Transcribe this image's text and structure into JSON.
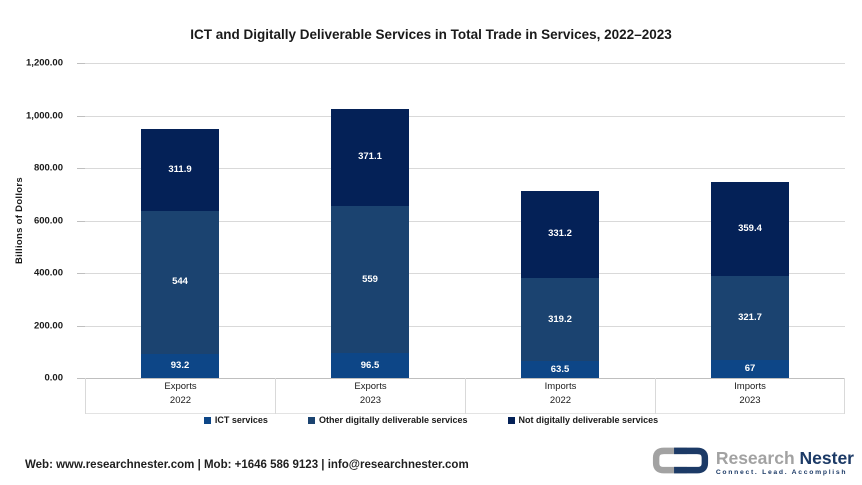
{
  "title": "ICT and Digitally Deliverable Services in Total Trade in Services, 2022–2023",
  "chart_data": {
    "type": "bar",
    "stacked": true,
    "title": "ICT and Digitally Deliverable Services in Total Trade in Services, 2022–2023",
    "xlabel": "",
    "ylabel": "Billions of Dollors",
    "ylim": [
      0,
      1200
    ],
    "grid": true,
    "legend_position": "bottom",
    "ytick_values": [
      0,
      200,
      400,
      600,
      800,
      1000,
      1200
    ],
    "ytick_labels": [
      "0.00",
      "200.00",
      "400.00",
      "600.00",
      "800.00",
      "1,000.00",
      "1,200.00"
    ],
    "categories": [
      {
        "label": "Exports",
        "year": "2022"
      },
      {
        "label": "Exports",
        "year": "2023"
      },
      {
        "label": "Imports",
        "year": "2022"
      },
      {
        "label": "Imports",
        "year": "2023"
      }
    ],
    "series": [
      {
        "name": "ICT services",
        "color": "#0d4687",
        "values": [
          93.2,
          96.5,
          63.5,
          67
        ]
      },
      {
        "name": "Other digitally deliverable services",
        "color": "#1b4370",
        "values": [
          544,
          559,
          319.2,
          321.7
        ]
      },
      {
        "name": "Not digitally deliverable services",
        "color": "#042157",
        "values": [
          311.9,
          371.1,
          331.2,
          359.4
        ]
      }
    ]
  },
  "footer": {
    "contact": "Web: www.researchnester.com | Mob: +1646 586 9123 | info@researchnester.com",
    "logo": {
      "name_part1": "Research",
      "name_part2": "Nester",
      "tagline": "Connect. Lead. Accomplish"
    }
  },
  "colors": {
    "background": "#ffffff",
    "gridline": "#d9d9d9",
    "axis_line": "#bfbfbf",
    "text": "#1a1a1a",
    "logo_gray": "#a2a2a2",
    "logo_navy": "#1c3a66"
  }
}
